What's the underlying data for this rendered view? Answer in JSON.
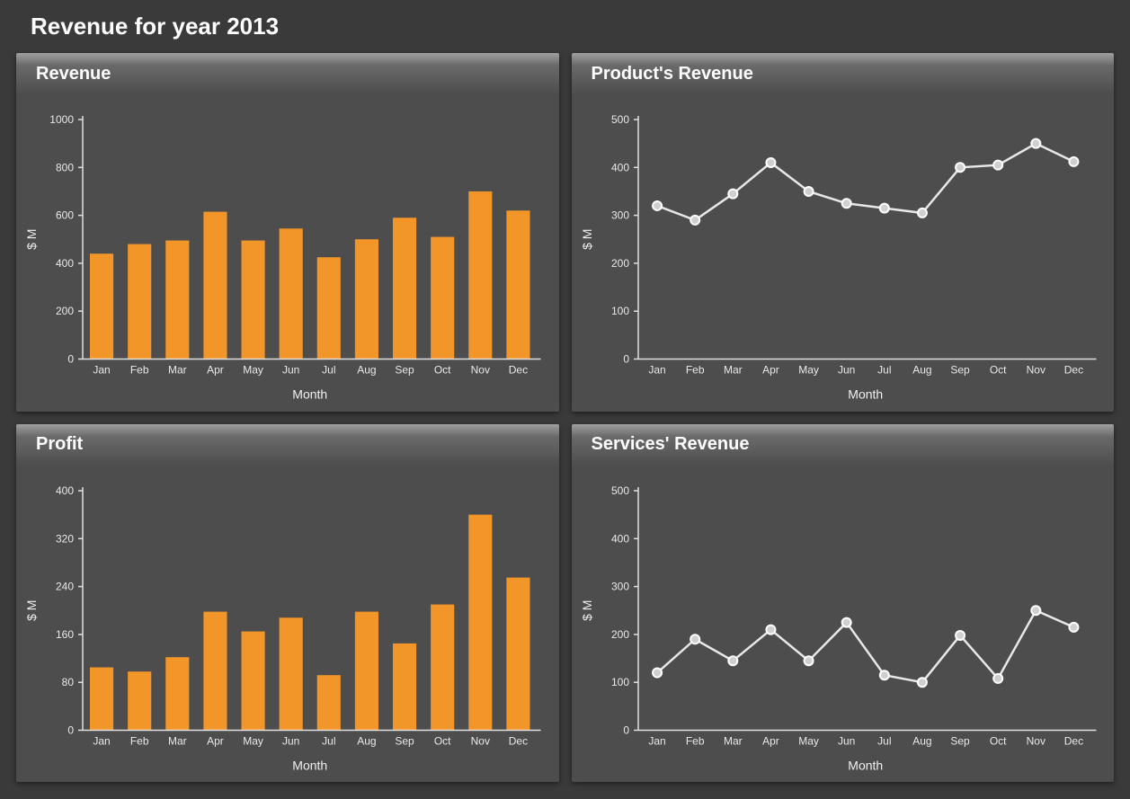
{
  "dashboard": {
    "title": "Revenue for year 2013",
    "background_color": "#3a3a3a",
    "panel_background": "#4d4d4d",
    "text_color": "#ffffff",
    "axis_color": "#e0e0e0",
    "tick_label_color": "#e8e8e8",
    "months": [
      "Jan",
      "Feb",
      "Mar",
      "Apr",
      "May",
      "Jun",
      "Jul",
      "Aug",
      "Sep",
      "Oct",
      "Nov",
      "Dec"
    ]
  },
  "panels": {
    "revenue": {
      "title": "Revenue",
      "type": "bar",
      "xlabel": "Month",
      "ylabel": "$ M",
      "ylim": [
        0,
        1000
      ],
      "ytick_step": 200,
      "values": [
        440,
        480,
        495,
        615,
        495,
        545,
        425,
        500,
        590,
        510,
        700,
        620
      ],
      "bar_color": "#f2962a",
      "title_fontsize": 20,
      "label_fontsize": 14,
      "tick_fontsize": 12
    },
    "product_revenue": {
      "title": "Product's Revenue",
      "type": "line",
      "xlabel": "Month",
      "ylabel": "$ M",
      "ylim": [
        0,
        500
      ],
      "ytick_step": 100,
      "values": [
        320,
        290,
        345,
        410,
        350,
        325,
        315,
        305,
        400,
        405,
        450,
        412
      ],
      "line_color": "#e8e8e8",
      "marker_fill": "#cfcfcf",
      "marker_stroke": "#ffffff",
      "marker_radius": 5,
      "title_fontsize": 20,
      "label_fontsize": 14,
      "tick_fontsize": 12
    },
    "profit": {
      "title": "Profit",
      "type": "bar",
      "xlabel": "Month",
      "ylabel": "$ M",
      "ylim": [
        0,
        400
      ],
      "ytick_step": 80,
      "values": [
        105,
        98,
        122,
        198,
        165,
        188,
        92,
        198,
        145,
        210,
        360,
        255
      ],
      "bar_color": "#f2962a",
      "title_fontsize": 20,
      "label_fontsize": 14,
      "tick_fontsize": 12
    },
    "services_revenue": {
      "title": "Services' Revenue",
      "type": "line",
      "xlabel": "Month",
      "ylabel": "$ M",
      "ylim": [
        0,
        500
      ],
      "ytick_step": 100,
      "values": [
        120,
        190,
        145,
        210,
        145,
        225,
        115,
        100,
        198,
        108,
        250,
        215
      ],
      "line_color": "#e8e8e8",
      "marker_fill": "#cfcfcf",
      "marker_stroke": "#ffffff",
      "marker_radius": 5,
      "title_fontsize": 20,
      "label_fontsize": 14,
      "tick_fontsize": 12
    }
  }
}
